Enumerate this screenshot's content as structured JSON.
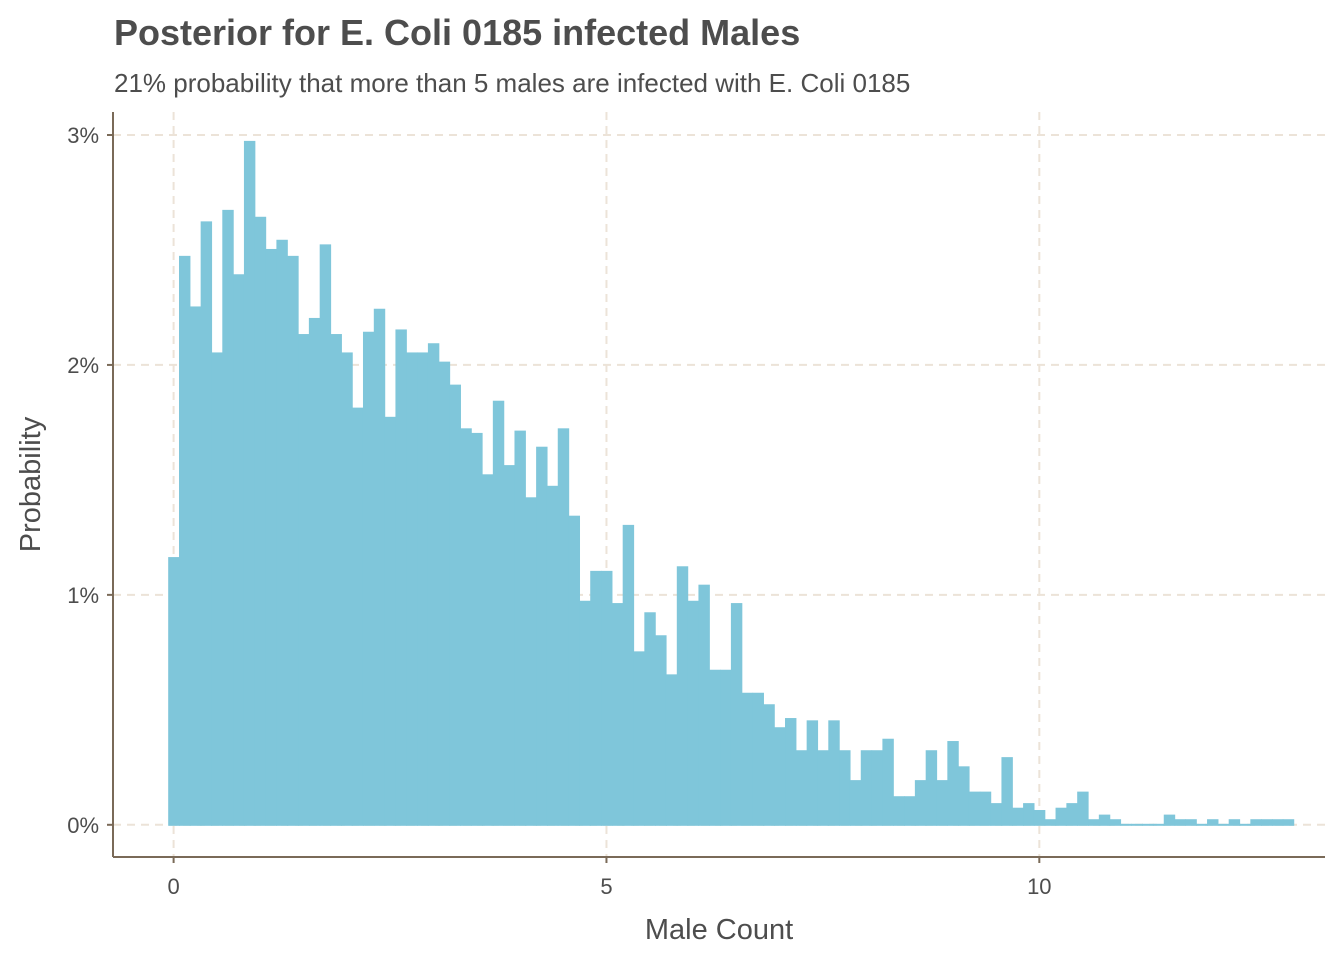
{
  "colors": {
    "bar": "#7fc6da",
    "grid": "#ece3d8",
    "axis": "#7a6a58",
    "text": "#4d4d4d"
  },
  "chart_data": {
    "type": "bar",
    "title": "Posterior for E. Coli 0185 infected Males",
    "subtitle": "21% probability that more than 5 males are infected with E. Coli 0185",
    "xlabel": "Male Count",
    "ylabel": "Probability",
    "xlim": [
      -0.7,
      13.3
    ],
    "ylim": [
      -0.0014,
      0.031
    ],
    "xticks": [
      0,
      5,
      10
    ],
    "xtick_labels": [
      "0",
      "5",
      "10"
    ],
    "yticks": [
      0,
      0.01,
      0.02,
      0.03
    ],
    "ytick_labels": [
      "0%",
      "1%",
      "2%",
      "3%"
    ],
    "grid": true,
    "bin_start": -0.0625,
    "bin_width": 0.125,
    "values": [
      0.0116,
      0.0247,
      0.0225,
      0.0262,
      0.0205,
      0.0267,
      0.0239,
      0.0297,
      0.0264,
      0.025,
      0.0254,
      0.0247,
      0.0213,
      0.022,
      0.0252,
      0.0213,
      0.0205,
      0.0181,
      0.0214,
      0.0224,
      0.0177,
      0.0215,
      0.0205,
      0.0205,
      0.0209,
      0.0201,
      0.0191,
      0.0172,
      0.017,
      0.0152,
      0.0184,
      0.0156,
      0.0171,
      0.0142,
      0.0164,
      0.0147,
      0.0172,
      0.0134,
      0.0097,
      0.011,
      0.011,
      0.0096,
      0.013,
      0.0075,
      0.0092,
      0.0082,
      0.0065,
      0.0112,
      0.0097,
      0.0104,
      0.0067,
      0.0067,
      0.0096,
      0.0057,
      0.0057,
      0.0052,
      0.0042,
      0.0046,
      0.0032,
      0.0045,
      0.0032,
      0.0045,
      0.0032,
      0.0019,
      0.0032,
      0.0032,
      0.0037,
      0.0012,
      0.0012,
      0.0019,
      0.0032,
      0.0019,
      0.0036,
      0.0025,
      0.0014,
      0.0014,
      0.0009,
      0.0029,
      0.0007,
      0.0009,
      0.0006,
      0.0002,
      0.0007,
      0.0009,
      0.0014,
      0.0002,
      0.0004,
      0.0002,
      0.0,
      0.0,
      0.0,
      0.0,
      0.0004,
      0.0002,
      0.0002,
      0.0,
      0.0002,
      0.0,
      0.0002,
      0.0,
      0.0002,
      0.0002,
      0.0002,
      0.0002
    ]
  }
}
